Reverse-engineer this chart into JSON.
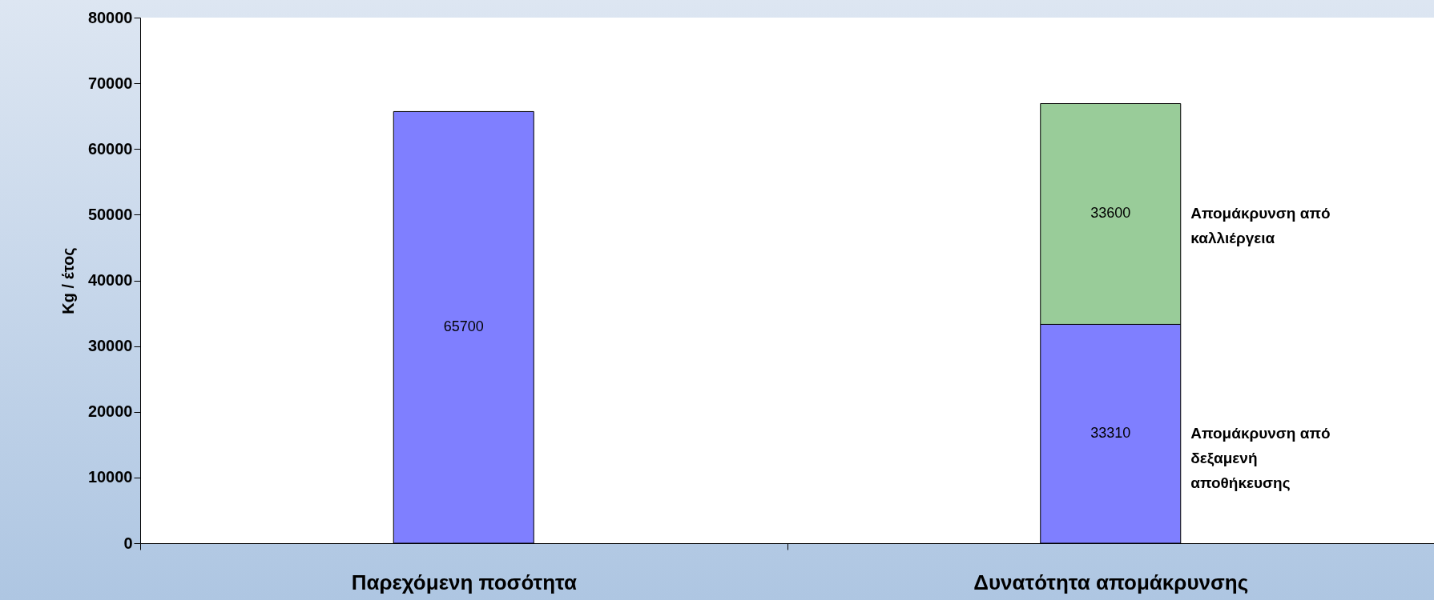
{
  "chart_data": {
    "type": "bar",
    "stacked": true,
    "ylabel": "Kg / έτος",
    "categories": [
      "Παρεχόμενη ποσότητα",
      "Δυνατότητα απομάκρυνσης"
    ],
    "series": [
      {
        "name": "Απομάκρυνση από δεξαμενή αποθήκευσης",
        "color": "#7f7fff",
        "values": [
          65700,
          33310
        ]
      },
      {
        "name": "Απομάκρυνση από καλλιέργεια",
        "color": "#99cc99",
        "values": [
          null,
          33600
        ]
      }
    ],
    "ylim": [
      0,
      80000
    ],
    "yticks": [
      0,
      10000,
      20000,
      30000,
      40000,
      50000,
      60000,
      70000,
      80000
    ],
    "data_labels": true,
    "grid": false,
    "legend": false
  }
}
